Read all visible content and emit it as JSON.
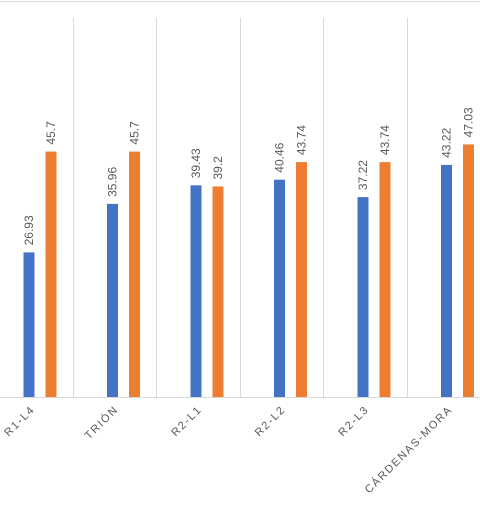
{
  "chart_data": {
    "type": "bar",
    "categories": [
      "R1-L4",
      "TRIÓN",
      "R2-L1",
      "R2-L2",
      "R2-L3",
      "CÁRDENAS-MORA"
    ],
    "series": [
      {
        "values": [
          26.93,
          35.96,
          39.43,
          40.46,
          37.22,
          43.22
        ],
        "color": "#4472C4"
      },
      {
        "values": [
          45.7,
          45.7,
          39.2,
          43.74,
          43.74,
          47.03
        ],
        "color": "#ED7D31"
      }
    ],
    "value_labels": [
      [
        "26.93",
        "35.96",
        "39.43",
        "40.46",
        "37.22",
        "43.22"
      ],
      [
        "45.7",
        "45.7",
        "39.2",
        "43.74",
        "43.74",
        "47.03"
      ]
    ],
    "grid": true
  }
}
